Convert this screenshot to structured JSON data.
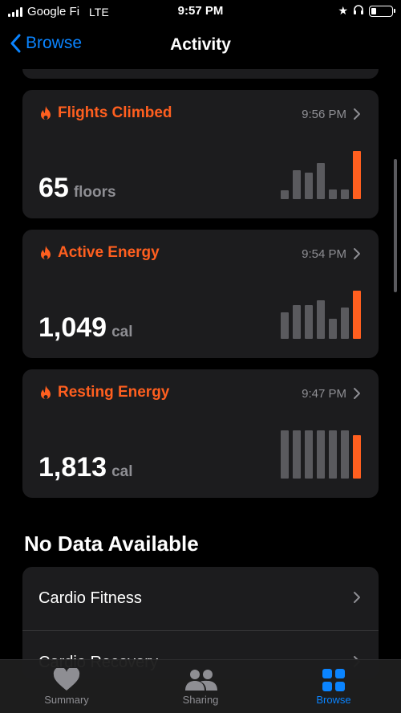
{
  "status_bar": {
    "carrier": "Google Fi",
    "network": "LTE",
    "time": "9:57 PM"
  },
  "nav": {
    "back_label": "Browse",
    "title": "Activity"
  },
  "cards": [
    {
      "title": "Flights Climbed",
      "time": "9:56 PM",
      "value": "65",
      "unit": "floors",
      "chart_levels": [
        0.18,
        0.6,
        0.55,
        0.75,
        0.2,
        0.2,
        1.0
      ]
    },
    {
      "title": "Active Energy",
      "time": "9:54 PM",
      "value": "1,049",
      "unit": "cal",
      "chart_levels": [
        0.55,
        0.7,
        0.7,
        0.8,
        0.42,
        0.65,
        1.0
      ]
    },
    {
      "title": "Resting Energy",
      "time": "9:47 PM",
      "value": "1,813",
      "unit": "cal",
      "chart_levels": [
        1.0,
        1.0,
        1.0,
        1.0,
        1.0,
        1.0,
        0.9
      ]
    }
  ],
  "no_data": {
    "title": "No Data Available",
    "items": [
      "Cardio Fitness",
      "Cardio Recovery"
    ]
  },
  "tabbar": {
    "summary": "Summary",
    "sharing": "Sharing",
    "browse": "Browse"
  },
  "colors": {
    "accent": "#ff5f1f",
    "link": "#0a84ff",
    "bar_inactive": "#5a5a5e"
  }
}
